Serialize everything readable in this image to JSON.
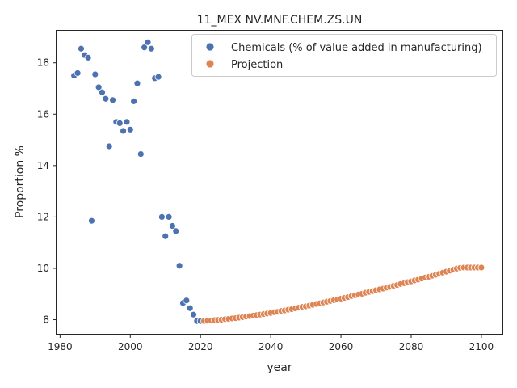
{
  "chart_data": {
    "type": "scatter",
    "title": "11_MEX NV.MNF.CHEM.ZS.UN",
    "xlabel": "year",
    "ylabel": "Proportion %",
    "xlim": [
      1979,
      2106
    ],
    "ylim": [
      7.45,
      19.25
    ],
    "xticks": [
      1980,
      2000,
      2020,
      2040,
      2060,
      2080,
      2100
    ],
    "yticks": [
      8,
      10,
      12,
      14,
      16,
      18
    ],
    "grid": false,
    "legend_position": "top-right",
    "series": [
      {
        "name": "Chemicals (% of value added in manufacturing)",
        "color": "#4c72b0",
        "points": [
          [
            1984,
            17.5
          ],
          [
            1985,
            17.6
          ],
          [
            1986,
            18.55
          ],
          [
            1987,
            18.3
          ],
          [
            1988,
            18.2
          ],
          [
            1989,
            11.85
          ],
          [
            1990,
            17.55
          ],
          [
            1991,
            17.05
          ],
          [
            1992,
            16.85
          ],
          [
            1993,
            16.6
          ],
          [
            1994,
            14.75
          ],
          [
            1995,
            16.55
          ],
          [
            1996,
            15.7
          ],
          [
            1997,
            15.65
          ],
          [
            1998,
            15.35
          ],
          [
            1999,
            15.7
          ],
          [
            2000,
            15.4
          ],
          [
            2001,
            16.5
          ],
          [
            2002,
            17.2
          ],
          [
            2003,
            14.45
          ],
          [
            2004,
            18.6
          ],
          [
            2005,
            18.8
          ],
          [
            2006,
            18.55
          ],
          [
            2007,
            17.4
          ],
          [
            2008,
            17.45
          ],
          [
            2009,
            12.0
          ],
          [
            2010,
            11.25
          ],
          [
            2011,
            12.0
          ],
          [
            2012,
            11.65
          ],
          [
            2013,
            11.45
          ],
          [
            2014,
            10.1
          ],
          [
            2015,
            8.65
          ],
          [
            2016,
            8.75
          ],
          [
            2017,
            8.45
          ],
          [
            2018,
            8.2
          ],
          [
            2019,
            7.95
          ],
          [
            2020,
            7.95
          ]
        ]
      },
      {
        "name": "Projection",
        "color": "#dd8452",
        "points": [
          [
            2021,
            7.95
          ],
          [
            2022,
            7.96
          ],
          [
            2023,
            7.97
          ],
          [
            2024,
            7.98
          ],
          [
            2025,
            7.99
          ],
          [
            2026,
            8.0
          ],
          [
            2027,
            8.02
          ],
          [
            2028,
            8.03
          ],
          [
            2029,
            8.05
          ],
          [
            2030,
            8.06
          ],
          [
            2031,
            8.08
          ],
          [
            2032,
            8.1
          ],
          [
            2033,
            8.12
          ],
          [
            2034,
            8.14
          ],
          [
            2035,
            8.16
          ],
          [
            2036,
            8.18
          ],
          [
            2037,
            8.2
          ],
          [
            2038,
            8.22
          ],
          [
            2039,
            8.24
          ],
          [
            2040,
            8.26
          ],
          [
            2041,
            8.29
          ],
          [
            2042,
            8.31
          ],
          [
            2043,
            8.34
          ],
          [
            2044,
            8.36
          ],
          [
            2045,
            8.39
          ],
          [
            2046,
            8.41
          ],
          [
            2047,
            8.44
          ],
          [
            2048,
            8.47
          ],
          [
            2049,
            8.5
          ],
          [
            2050,
            8.52
          ],
          [
            2051,
            8.55
          ],
          [
            2052,
            8.58
          ],
          [
            2053,
            8.61
          ],
          [
            2054,
            8.64
          ],
          [
            2055,
            8.67
          ],
          [
            2056,
            8.7
          ],
          [
            2057,
            8.73
          ],
          [
            2058,
            8.76
          ],
          [
            2059,
            8.79
          ],
          [
            2060,
            8.82
          ],
          [
            2061,
            8.85
          ],
          [
            2062,
            8.88
          ],
          [
            2063,
            8.92
          ],
          [
            2064,
            8.95
          ],
          [
            2065,
            8.98
          ],
          [
            2066,
            9.01
          ],
          [
            2067,
            9.05
          ],
          [
            2068,
            9.08
          ],
          [
            2069,
            9.11
          ],
          [
            2070,
            9.15
          ],
          [
            2071,
            9.18
          ],
          [
            2072,
            9.21
          ],
          [
            2073,
            9.25
          ],
          [
            2074,
            9.28
          ],
          [
            2075,
            9.32
          ],
          [
            2076,
            9.35
          ],
          [
            2077,
            9.39
          ],
          [
            2078,
            9.42
          ],
          [
            2079,
            9.46
          ],
          [
            2080,
            9.49
          ],
          [
            2081,
            9.53
          ],
          [
            2082,
            9.56
          ],
          [
            2083,
            9.6
          ],
          [
            2084,
            9.64
          ],
          [
            2085,
            9.67
          ],
          [
            2086,
            9.71
          ],
          [
            2087,
            9.75
          ],
          [
            2088,
            9.79
          ],
          [
            2089,
            9.83
          ],
          [
            2090,
            9.87
          ],
          [
            2091,
            9.91
          ],
          [
            2092,
            9.95
          ],
          [
            2093,
            9.99
          ],
          [
            2094,
            10.02
          ],
          [
            2095,
            10.03
          ],
          [
            2096,
            10.03
          ],
          [
            2097,
            10.03
          ],
          [
            2098,
            10.03
          ],
          [
            2099,
            10.03
          ],
          [
            2100,
            10.03
          ]
        ]
      }
    ]
  }
}
